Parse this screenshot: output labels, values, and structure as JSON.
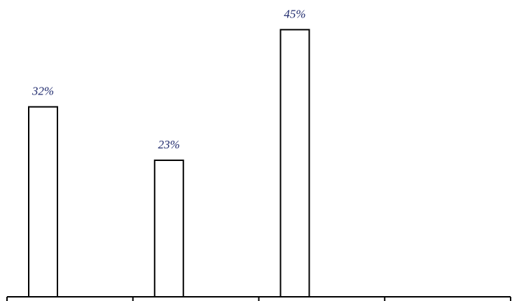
{
  "chart_data": {
    "type": "bar",
    "categories": [
      "",
      "",
      "",
      ""
    ],
    "values": [
      32,
      23,
      45,
      null
    ],
    "data_labels": [
      "32%",
      "23%",
      "45%",
      ""
    ],
    "ylim": [
      0,
      50
    ],
    "grid": false,
    "legend": "none",
    "colors": {
      "bar_fill": "#ffffff",
      "bar_stroke": "#000000",
      "label": "#1f2a6d"
    }
  }
}
